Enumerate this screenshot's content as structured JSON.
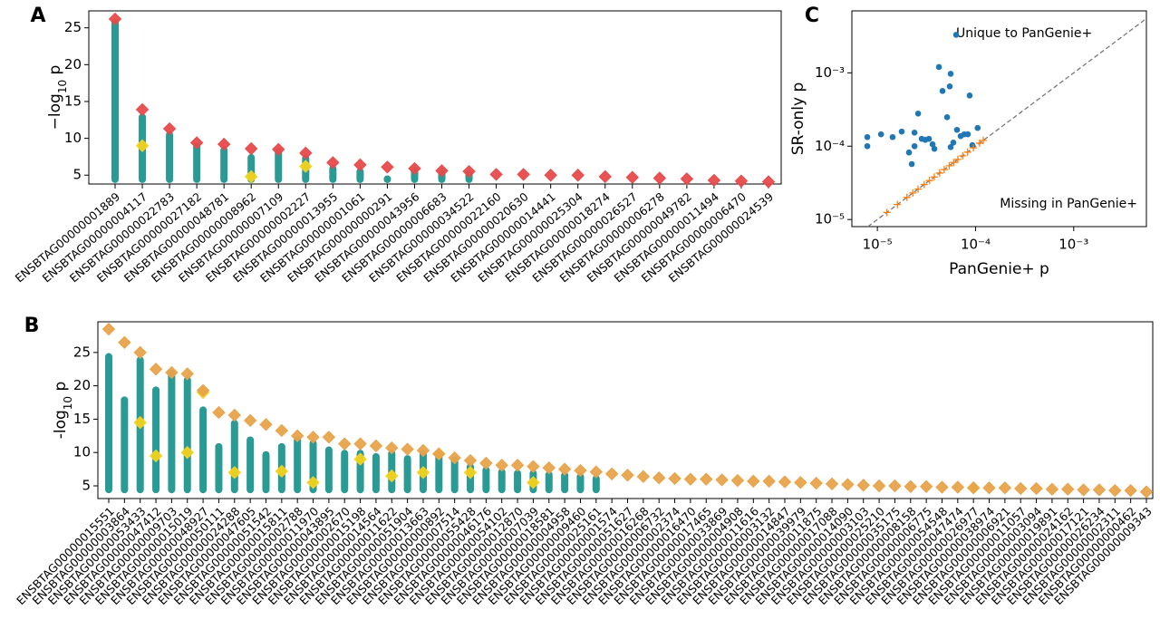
{
  "chart_data": [
    {
      "type": "strip",
      "label": "A",
      "ylabel": [
        "−log",
        "10",
        " p"
      ],
      "categories": [
        "ENSBTAG00000001889",
        "ENSBTAG00000004117",
        "ENSBTAG00000022783",
        "ENSBTAG00000027182",
        "ENSBTAG00000048781",
        "ENSBTAG00000008962",
        "ENSBTAG00000007109",
        "ENSBTAG00000002227",
        "ENSBTAG00000013955",
        "ENSBTAG00000001061",
        "ENSBTAG00000000291",
        "ENSBTAG00000043956",
        "ENSBTAG00000006683",
        "ENSBTAG00000034522",
        "ENSBTAG00000022160",
        "ENSBTAG00000020630",
        "ENSBTAG00000014441",
        "ENSBTAG00000025304",
        "ENSBTAG00000018274",
        "ENSBTAG00000026527",
        "ENSBTAG00000006278",
        "ENSBTAG00000049782",
        "ENSBTAG00000011494",
        "ENSBTAG00000006470",
        "ENSBTAG00000024539"
      ],
      "ylim": [
        3.8,
        27.3
      ],
      "yticks": [
        5,
        10,
        15,
        20,
        25
      ],
      "series": [
        {
          "marker": "range",
          "color": "#138f8a",
          "base": 4.3,
          "values": [
            25.8,
            13.0,
            10.6,
            9.0,
            8.5,
            7.5,
            8.3,
            7.4,
            6.0,
            5.6,
            4.6,
            5.8,
            5.4,
            5.3,
            null,
            null,
            null,
            null,
            null,
            null,
            null,
            null,
            null,
            null,
            null
          ]
        },
        {
          "marker": "diamond",
          "color": "#f2d21b",
          "values": [
            null,
            9.0,
            null,
            null,
            null,
            4.8,
            null,
            6.2,
            null,
            null,
            null,
            null,
            null,
            null,
            null,
            null,
            null,
            null,
            null,
            null,
            null,
            null,
            null,
            null,
            null
          ]
        },
        {
          "marker": "diamond",
          "color": "#e84a4a",
          "values": [
            26.2,
            13.9,
            11.3,
            9.4,
            9.2,
            8.6,
            8.5,
            8.0,
            6.7,
            6.4,
            6.1,
            5.9,
            5.6,
            5.5,
            5.1,
            5.1,
            5.0,
            5.0,
            4.8,
            4.7,
            4.6,
            4.5,
            4.3,
            4.2,
            4.1
          ]
        }
      ]
    },
    {
      "type": "strip",
      "label": "B",
      "ylabel": [
        "-log",
        "10",
        " p"
      ],
      "categories": [
        "ENSBTAG00000015551",
        "ENSBTAG00000003864",
        "ENSBTAG00000053433",
        "ENSBTAG00000047412",
        "ENSBTAG00000009703",
        "ENSBTAG00000015019",
        "ENSBTAG00000048927",
        "ENSBTAG00000050111",
        "ENSBTAG00000024288",
        "ENSBTAG00000047605",
        "ENSBTAG00000051542",
        "ENSBTAG00000015811",
        "ENSBTAG00000002788",
        "ENSBTAG00000011970",
        "ENSBTAG00000043895",
        "ENSBTAG00000002670",
        "ENSBTAG00000015198",
        "ENSBTAG00000014564",
        "ENSBTAG00000011622",
        "ENSBTAG00000051904",
        "ENSBTAG00000013663",
        "ENSBTAG00000000892",
        "ENSBTAG00000007514",
        "ENSBTAG00000055428",
        "ENSBTAG00000046176",
        "ENSBTAG00000054102",
        "ENSBTAG00000012870",
        "ENSBTAG00000007039",
        "ENSBTAG00000018581",
        "ENSBTAG00000004958",
        "ENSBTAG00000009460",
        "ENSBTAG00000025161",
        "ENSBTAG00000001574",
        "ENSBTAG00000051627",
        "ENSBTAG00000016268",
        "ENSBTAG00000006732",
        "ENSBTAG00000002374",
        "ENSBTAG00000016470",
        "ENSBTAG00000017465",
        "ENSBTAG00000033869",
        "ENSBTAG00000004908",
        "ENSBTAG00000011616",
        "ENSBTAG00000003132",
        "ENSBTAG00000014847",
        "ENSBTAG00000039979",
        "ENSBTAG00000011875",
        "ENSBTAG00000017088",
        "ENSBTAG00000014090",
        "ENSBTAG00000003103",
        "ENSBTAG00000025210",
        "ENSBTAG00000035175",
        "ENSBTAG00000008158",
        "ENSBTAG00000006775",
        "ENSBTAG00000054548",
        "ENSBTAG00000047474",
        "ENSBTAG00000026977",
        "ENSBTAG00000038974",
        "ENSBTAG00000006921",
        "ENSBTAG00000011057",
        "ENSBTAG00000003094",
        "ENSBTAG00000019891",
        "ENSBTAG00000024162",
        "ENSBTAG00000017121",
        "ENSBTAG00000026234",
        "ENSBTAG00000002311",
        "ENSBTAG00000000462",
        "ENSBTAG00000009343"
      ],
      "ylim": [
        3.1,
        29.6
      ],
      "yticks": [
        5,
        10,
        15,
        20,
        25
      ],
      "series": [
        {
          "marker": "range",
          "color": "#138f8a",
          "base": 4.3,
          "values": [
            24.5,
            18.0,
            24.0,
            19.5,
            22.0,
            21.0,
            16.5,
            11.0,
            14.5,
            12.0,
            9.8,
            11.0,
            12.0,
            11.5,
            10.5,
            10.0,
            10.0,
            9.5,
            10.0,
            9.2,
            10.0,
            9.5,
            9.0,
            8.0,
            7.5,
            7.2,
            7.0,
            7.0,
            6.8,
            6.7,
            6.5,
            6.2,
            null,
            null,
            null,
            null,
            null,
            null,
            null,
            null,
            null,
            null,
            null,
            null,
            null,
            null,
            null,
            null,
            null,
            null,
            null,
            null,
            null,
            null,
            null,
            null,
            null,
            null,
            null,
            null,
            null,
            null,
            null,
            null,
            null,
            null,
            null
          ]
        },
        {
          "marker": "diamond",
          "color": "#f2d21b",
          "values": [
            null,
            null,
            14.5,
            9.5,
            null,
            10.0,
            19.0,
            null,
            7.0,
            null,
            null,
            7.2,
            null,
            5.5,
            null,
            null,
            9.0,
            null,
            6.5,
            null,
            7.0,
            9.8,
            null,
            7.0,
            null,
            null,
            null,
            5.5,
            null,
            null,
            null,
            null,
            null,
            null,
            null,
            null,
            null,
            null,
            null,
            null,
            null,
            null,
            null,
            null,
            null,
            null,
            null,
            null,
            null,
            null,
            null,
            null,
            null,
            null,
            null,
            4.7,
            null,
            null,
            null,
            null,
            null,
            null,
            null,
            null,
            null,
            null,
            null
          ]
        },
        {
          "marker": "diamond",
          "color": "#e8a34a",
          "values": [
            28.5,
            26.5,
            25.0,
            22.5,
            22.0,
            21.8,
            19.3,
            16.0,
            15.6,
            14.8,
            14.2,
            13.3,
            12.5,
            12.3,
            12.3,
            11.3,
            11.3,
            11.0,
            10.7,
            10.5,
            10.3,
            9.8,
            9.2,
            8.8,
            8.4,
            8.1,
            8.1,
            7.9,
            7.7,
            7.5,
            7.3,
            7.1,
            6.8,
            6.6,
            6.4,
            6.2,
            6.1,
            6.0,
            6.0,
            5.9,
            5.8,
            5.7,
            5.7,
            5.6,
            5.5,
            5.4,
            5.3,
            5.2,
            5.1,
            5.0,
            5.0,
            4.9,
            4.9,
            4.8,
            4.8,
            4.7,
            4.7,
            4.7,
            4.6,
            4.6,
            4.5,
            4.5,
            4.4,
            4.4,
            4.3,
            4.3,
            4.1
          ]
        }
      ]
    },
    {
      "type": "scatter",
      "label": "C",
      "xlabel": "PanGenie+ p",
      "ylabel": "SR-only p",
      "xscale": "log",
      "yscale": "log",
      "xlim": [
        5.5e-06,
        0.0055
      ],
      "ylim": [
        8e-06,
        0.007
      ],
      "xticks": [
        {
          "value": 1e-05,
          "label": "10⁻⁵"
        },
        {
          "value": 0.0001,
          "label": "10⁻⁴"
        },
        {
          "value": 0.001,
          "label": "10⁻³"
        }
      ],
      "yticks": [
        {
          "value": 1e-05,
          "label": "10⁻⁵"
        },
        {
          "value": 0.0001,
          "label": "10⁻⁴"
        },
        {
          "value": 0.001,
          "label": "10⁻³"
        }
      ],
      "diagonal": true,
      "annotations": [
        "Unique to PanGenie+",
        "Missing in PanGenie+"
      ],
      "series": [
        {
          "marker": "circle",
          "color": "#1f77b4",
          "x": [
            7.9e-06,
            7.9e-06,
            1.09e-05,
            1.43e-05,
            1.77e-05,
            2.1e-05,
            2.24e-05,
            2.39e-05,
            2.39e-05,
            2.6e-05,
            2.83e-05,
            3.08e-05,
            3.35e-05,
            3.65e-05,
            3.81e-05,
            4.24e-05,
            4.61e-05,
            5.13e-05,
            5.46e-05,
            5.58e-05,
            5.58e-05,
            5.94e-05,
            6.34e-05,
            6.47e-05,
            7.05e-05,
            7.67e-05,
            8.35e-05,
            8.71e-05,
            9.29e-05,
            0.000105
          ],
          "values": [
            0.000133,
            0.0001,
            0.000145,
            0.000133,
            0.000158,
            8.2e-05,
            5.7e-05,
            0.0001,
            0.000153,
            0.000278,
            0.000126,
            0.000122,
            0.000126,
            0.000106,
            9.2e-05,
            0.0012,
            0.000566,
            0.000248,
            0.000653,
            0.00097,
            9.7e-05,
            0.000112,
            0.0033,
            0.000167,
            0.000137,
            0.000145,
            0.000145,
            0.000491,
            0.000103,
            0.000177
          ]
        },
        {
          "marker": "cross",
          "color": "#ff7f0e",
          "x": [
            1.25e-05,
            1.6e-05,
            2e-05,
            2.3e-05,
            2.6e-05,
            3e-05,
            3.4e-05,
            3.8e-05,
            4.3e-05,
            4.8e-05,
            5.4e-05,
            6e-05,
            6.6e-05,
            7.4e-05,
            8.3e-05,
            9.5e-05,
            0.00011,
            0.00012
          ],
          "values": [
            1.25e-05,
            1.6e-05,
            2e-05,
            2.3e-05,
            2.6e-05,
            3e-05,
            3.4e-05,
            3.8e-05,
            4.3e-05,
            4.8e-05,
            5.4e-05,
            6e-05,
            6.6e-05,
            7.4e-05,
            8.3e-05,
            9.5e-05,
            0.00011,
            0.00012
          ]
        }
      ]
    }
  ]
}
